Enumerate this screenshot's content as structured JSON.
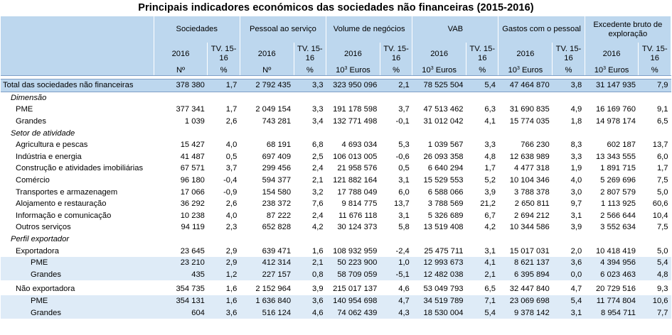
{
  "title": "Principais indicadores económicos das sociedades não financeiras (2015-2016)",
  "header": {
    "groups": [
      "Sociedades",
      "Pessoal ao serviço",
      "Volume de negócios",
      "VAB",
      "Gastos com o pessoal",
      "Excedente bruto de exploração"
    ],
    "year": "2016",
    "tv": "TV. 15-16",
    "units": {
      "n": "Nº",
      "pct": "%",
      "euros_base": "10",
      "euros_exp": "3",
      "euros_word": " Euros"
    }
  },
  "rows": {
    "total": {
      "label": "Total das sociedades não financeiras",
      "v": [
        "378 380",
        "1,7",
        "2 792 435",
        "3,3",
        "323 950 096",
        "2,1",
        "78 525 504",
        "5,4",
        "47 464 870",
        "3,8",
        "31 147 935",
        "7,9"
      ]
    },
    "dimensao": {
      "label": "Dimensão"
    },
    "pme": {
      "label": "PME",
      "v": [
        "377 341",
        "1,7",
        "2 049 154",
        "3,3",
        "191 178 598",
        "3,7",
        "47 513 462",
        "6,3",
        "31 690 835",
        "4,9",
        "16 169 760",
        "9,1"
      ]
    },
    "grandes": {
      "label": "Grandes",
      "v": [
        "1 039",
        "2,6",
        "743 281",
        "3,4",
        "132 771 498",
        "-0,1",
        "31 012 042",
        "4,1",
        "15 774 035",
        "1,8",
        "14 978 174",
        "6,5"
      ]
    },
    "setor": {
      "label": "Setor de atividade"
    },
    "agricultura": {
      "label": "Agricultura e pescas",
      "v": [
        "15 427",
        "4,0",
        "68 191",
        "6,8",
        "4 693 034",
        "5,3",
        "1 039 567",
        "3,3",
        "766 230",
        "8,3",
        "602 187",
        "13,7"
      ]
    },
    "industria": {
      "label": "Indústria e energia",
      "v": [
        "41 487",
        "0,5",
        "697 409",
        "2,5",
        "106 013 005",
        "-0,6",
        "26 093 358",
        "4,8",
        "12 638 989",
        "3,3",
        "13 343 555",
        "6,0"
      ]
    },
    "construcao": {
      "label": "Construção e atividades imobiliárias",
      "v": [
        "67 571",
        "3,7",
        "299 456",
        "2,4",
        "21 958 576",
        "0,5",
        "6 640 294",
        "1,7",
        "4 477 318",
        "1,9",
        "1 891 715",
        "1,7"
      ]
    },
    "comercio": {
      "label": "Comércio",
      "v": [
        "96 180",
        "-0,4",
        "594 377",
        "2,1",
        "121 882 164",
        "3,1",
        "15 529 553",
        "5,2",
        "10 104 346",
        "4,0",
        "5 269 696",
        "7,5"
      ]
    },
    "transportes": {
      "label": "Transportes e armazenagem",
      "v": [
        "17 066",
        "-0,9",
        "154 580",
        "3,2",
        "17 788 049",
        "6,0",
        "6 588 066",
        "3,9",
        "3 788 378",
        "3,0",
        "2 807 579",
        "5,0"
      ]
    },
    "alojamento": {
      "label": "Alojamento e restauração",
      "v": [
        "36 292",
        "2,6",
        "238 372",
        "7,6",
        "9 814 775",
        "13,7",
        "3 788 569",
        "21,2",
        "2 650 811",
        "9,7",
        "1 113 925",
        "60,6"
      ]
    },
    "informacao": {
      "label": "Informação e comunicação",
      "v": [
        "10 238",
        "4,0",
        "87 222",
        "2,4",
        "11 676 118",
        "3,1",
        "5 326 689",
        "6,7",
        "2 694 212",
        "3,1",
        "2 566 644",
        "10,4"
      ]
    },
    "outros": {
      "label": "Outros serviços",
      "v": [
        "94 119",
        "2,3",
        "652 828",
        "4,2",
        "30 124 373",
        "5,8",
        "13 519 408",
        "4,2",
        "10 344 586",
        "3,9",
        "3 552 634",
        "7,5"
      ]
    },
    "perfil": {
      "label": "Perfil exportador"
    },
    "exportadora": {
      "label": "Exportadora",
      "v": [
        "23 645",
        "2,9",
        "639 471",
        "1,6",
        "108 932 959",
        "-2,4",
        "25 475 711",
        "3,1",
        "15 017 031",
        "2,0",
        "10 418 419",
        "5,0"
      ]
    },
    "exp_pme": {
      "label": "PME",
      "v": [
        "23 210",
        "2,9",
        "412 314",
        "2,1",
        "50 223 900",
        "1,0",
        "12 993 673",
        "4,1",
        "8 621 137",
        "3,6",
        "4 394 956",
        "5,4"
      ]
    },
    "exp_grandes": {
      "label": "Grandes",
      "v": [
        "435",
        "1,2",
        "227 157",
        "0,8",
        "58 709 059",
        "-5,1",
        "12 482 038",
        "2,1",
        "6 395 894",
        "0,0",
        "6 023 463",
        "4,8"
      ]
    },
    "nao_exportadora": {
      "label": "Não exportadora",
      "v": [
        "354 735",
        "1,6",
        "2 152 964",
        "3,9",
        "215 017 137",
        "4,6",
        "53 049 793",
        "6,5",
        "32 447 840",
        "4,7",
        "20 729 516",
        "9,3"
      ]
    },
    "nexp_pme": {
      "label": "PME",
      "v": [
        "354 131",
        "1,6",
        "1 636 840",
        "3,6",
        "140 954 698",
        "4,7",
        "34 519 789",
        "7,1",
        "23 069 698",
        "5,4",
        "11 774 804",
        "10,6"
      ]
    },
    "nexp_grandes": {
      "label": "Grandes",
      "v": [
        "604",
        "3,6",
        "516 124",
        "4,6",
        "74 062 439",
        "4,3",
        "18 530 004",
        "5,4",
        "9 378 142",
        "3,1",
        "8 954 711",
        "7,7"
      ]
    }
  }
}
